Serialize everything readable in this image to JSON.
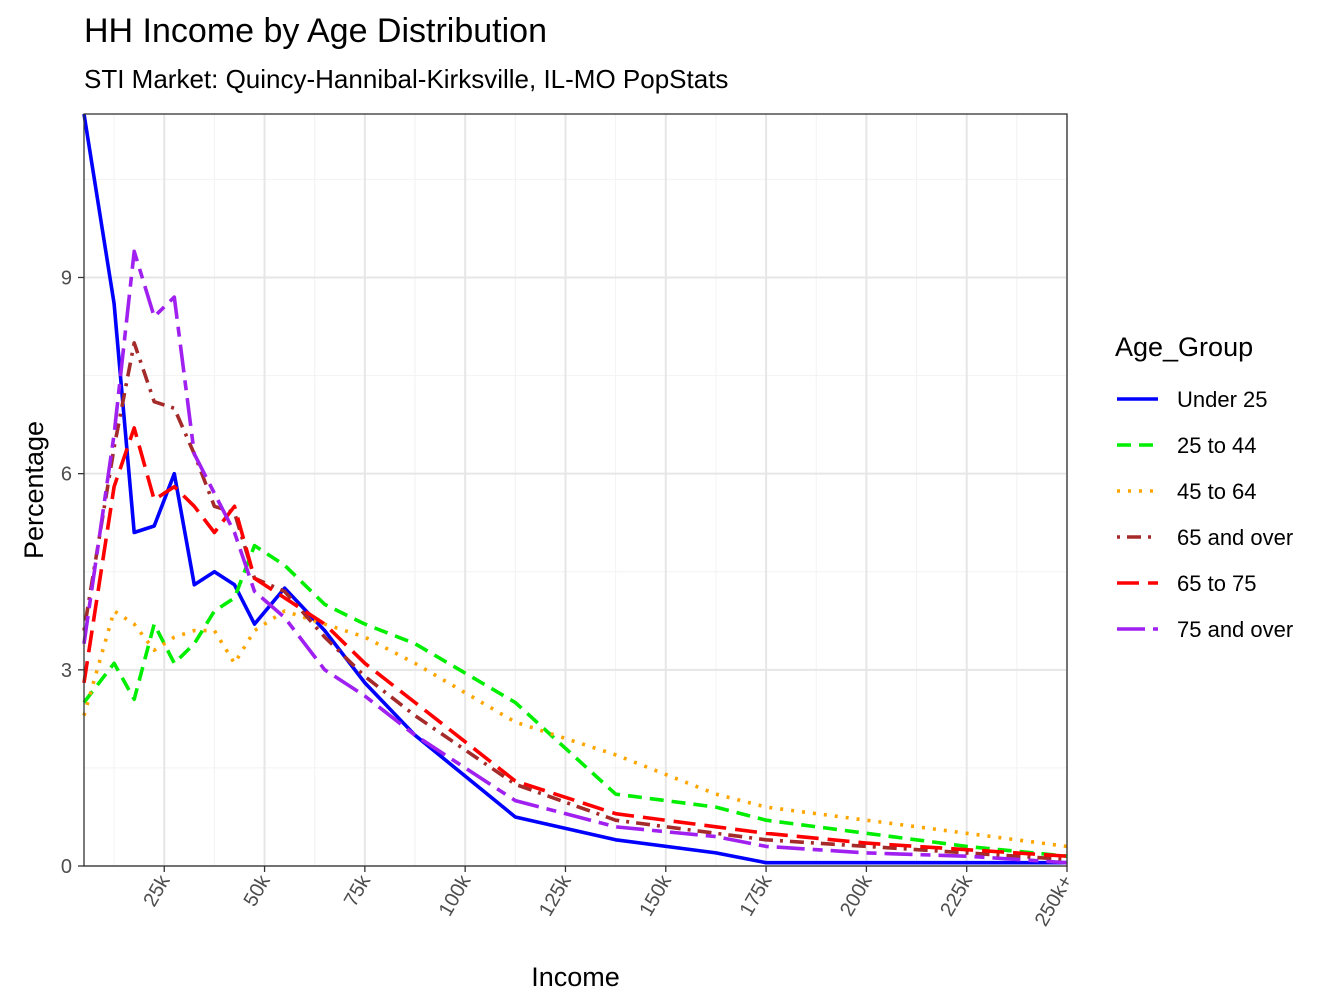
{
  "chart_data": {
    "type": "line",
    "title": "HH Income by Age Distribution",
    "subtitle": "STI Market: Quincy-Hannibal-Kirksville, IL-MO PopStats",
    "xlabel": "Income",
    "ylabel": "Percentage",
    "xlim": [
      5,
      250
    ],
    "ylim": [
      0,
      11.5
    ],
    "x_ticks": [
      25,
      50,
      75,
      100,
      125,
      150,
      175,
      200,
      225,
      250
    ],
    "x_tick_labels": [
      "25k",
      "50k",
      "75k",
      "100k",
      "125k",
      "150k",
      "175k",
      "200k",
      "225k",
      "250k+"
    ],
    "y_ticks": [
      0,
      3,
      6,
      9
    ],
    "y_tick_labels": [
      "0",
      "3",
      "6",
      "9"
    ],
    "grid": true,
    "legend_title": "Age_Group",
    "legend_position": "right",
    "x": [
      5,
      12.5,
      17.5,
      22.5,
      27.5,
      32.5,
      37.5,
      42.5,
      47.5,
      55,
      65,
      75,
      87.5,
      112.5,
      137.5,
      162.5,
      175,
      200,
      225,
      250
    ],
    "series": [
      {
        "name": "Under 25",
        "color": "#0000ff",
        "dash": "solid",
        "values": [
          11.5,
          8.6,
          5.1,
          5.2,
          6.0,
          4.3,
          4.5,
          4.3,
          3.7,
          4.25,
          3.6,
          2.8,
          2.0,
          0.75,
          0.4,
          0.2,
          0.05,
          0.05,
          0.05,
          0.05
        ]
      },
      {
        "name": "25 to 44",
        "color": "#00ee00",
        "dash": "dashed",
        "values": [
          2.5,
          3.1,
          2.55,
          3.7,
          3.1,
          3.4,
          3.9,
          4.1,
          4.9,
          4.6,
          4.0,
          3.7,
          3.4,
          2.5,
          1.1,
          0.9,
          0.7,
          0.5,
          0.3,
          0.15
        ]
      },
      {
        "name": "45 to 64",
        "color": "#ffa500",
        "dash": "dotted",
        "values": [
          2.3,
          3.9,
          3.7,
          3.3,
          3.5,
          3.6,
          3.6,
          3.1,
          3.6,
          3.9,
          3.7,
          3.5,
          3.1,
          2.2,
          1.7,
          1.1,
          0.9,
          0.7,
          0.5,
          0.3
        ]
      },
      {
        "name": "65 and over",
        "color": "#a52a2a",
        "dash": "dotdash",
        "values": [
          3.6,
          6.4,
          8.0,
          7.1,
          7.0,
          6.3,
          5.5,
          5.4,
          4.4,
          4.2,
          3.5,
          2.9,
          2.3,
          1.25,
          0.7,
          0.5,
          0.4,
          0.3,
          0.2,
          0.1
        ]
      },
      {
        "name": "65 to 75",
        "color": "#ff0000",
        "dash": "longdash",
        "values": [
          2.8,
          5.8,
          6.7,
          5.6,
          5.8,
          5.5,
          5.1,
          5.5,
          4.4,
          4.1,
          3.7,
          3.1,
          2.5,
          1.3,
          0.8,
          0.6,
          0.5,
          0.35,
          0.25,
          0.15
        ]
      },
      {
        "name": "75 and over",
        "color": "#a020f0",
        "dash": "twodash",
        "values": [
          3.4,
          6.6,
          9.4,
          8.4,
          8.7,
          6.3,
          5.7,
          5.1,
          4.2,
          3.8,
          3.0,
          2.6,
          2.0,
          1.0,
          0.6,
          0.45,
          0.3,
          0.2,
          0.15,
          0.05
        ]
      }
    ]
  }
}
